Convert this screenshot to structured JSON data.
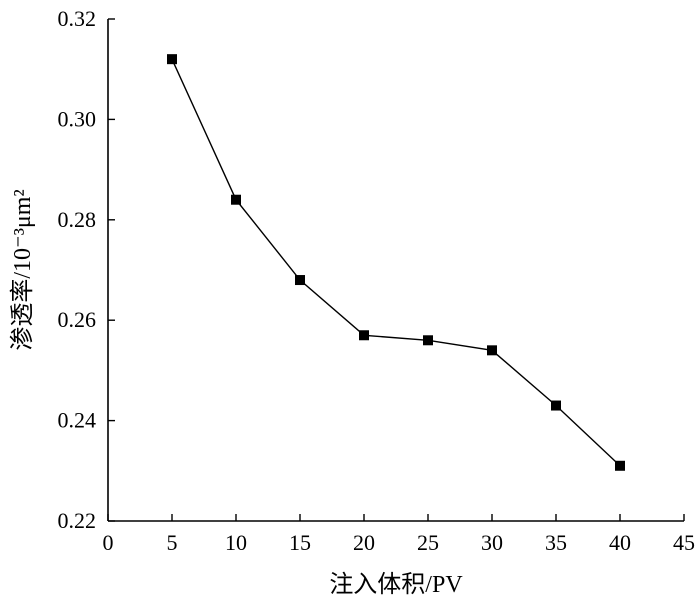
{
  "chart_data": {
    "type": "line",
    "title": "",
    "xlabel": "注入体积/PV",
    "ylabel": "渗透率/10⁻³μm²",
    "xlim": [
      0,
      45
    ],
    "ylim": [
      0.22,
      0.32
    ],
    "x_ticks": [
      "0",
      "5",
      "10",
      "15",
      "20",
      "25",
      "30",
      "35",
      "40",
      "45"
    ],
    "y_ticks": [
      "0.22",
      "0.24",
      "0.26",
      "0.28",
      "0.30",
      "0.32"
    ],
    "grid": false,
    "legend": "none",
    "marker": "square",
    "series": [
      {
        "x": [
          5,
          10,
          15,
          20,
          25,
          30,
          35,
          40
        ],
        "values": [
          0.312,
          0.284,
          0.268,
          0.257,
          0.256,
          0.254,
          0.243,
          0.231
        ]
      }
    ]
  }
}
